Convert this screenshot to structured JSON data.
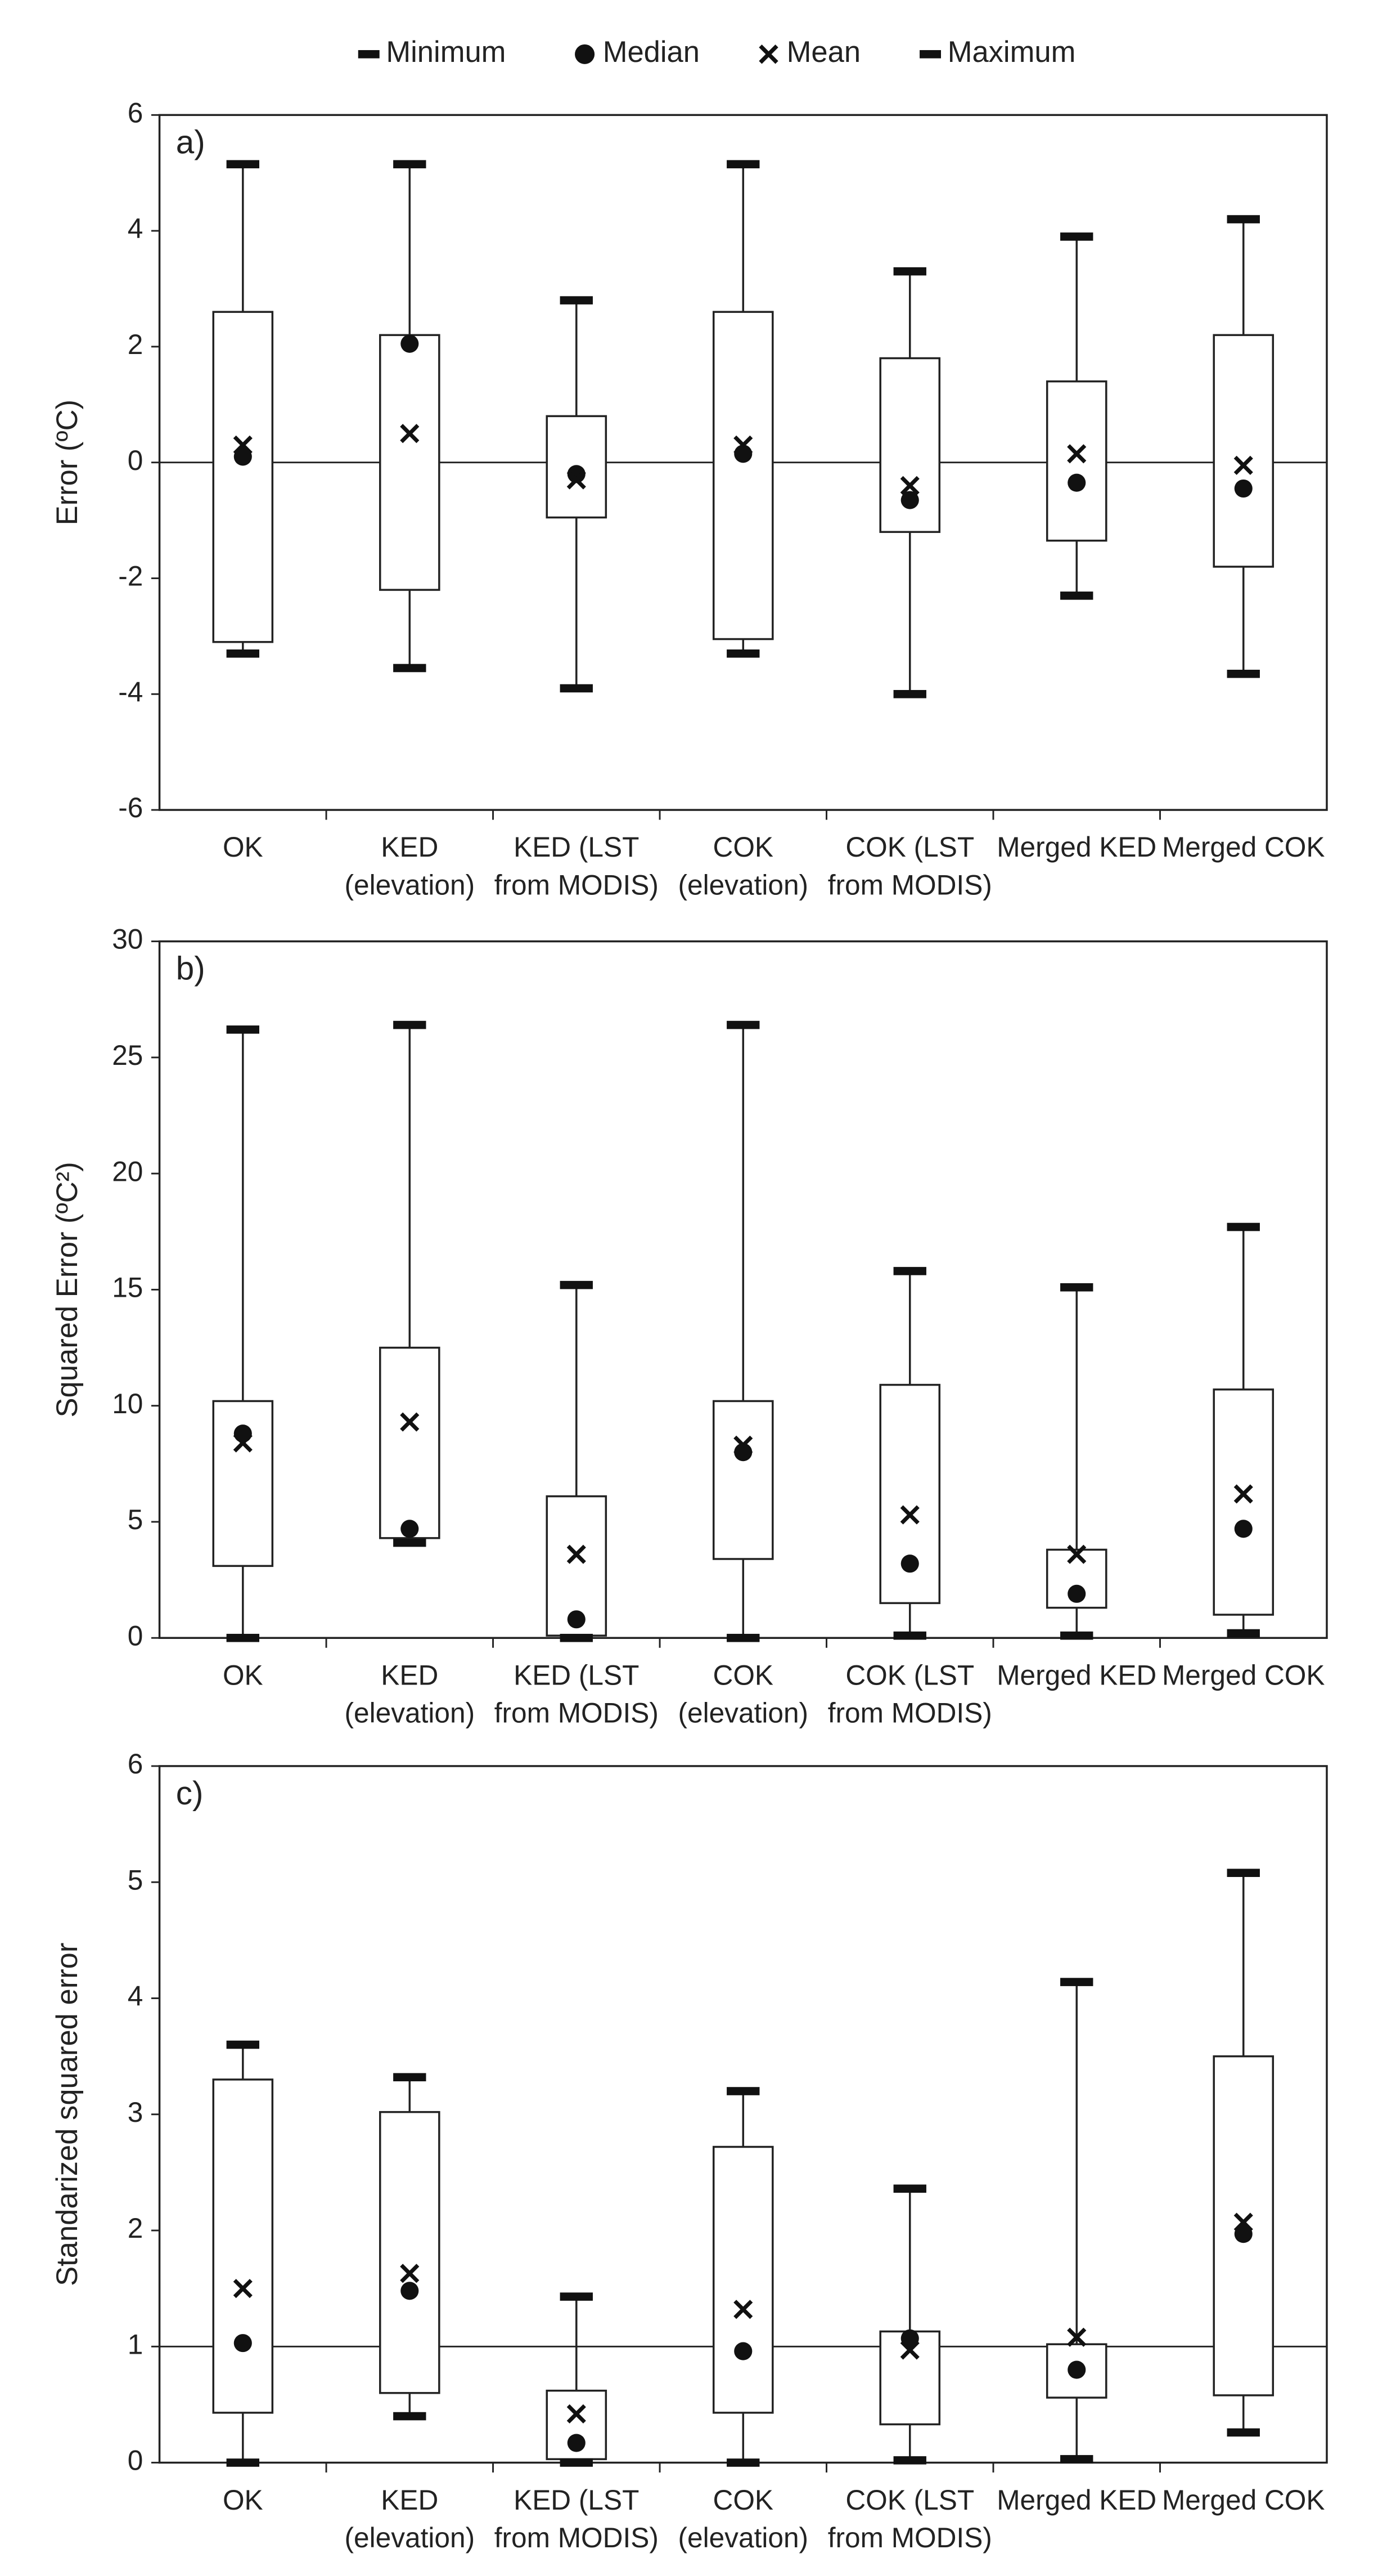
{
  "legend": [
    "Minimum",
    "Median",
    "Mean",
    "Maximum"
  ],
  "chart_data": [
    {
      "type": "box",
      "label": "a)",
      "y_label": "Error (ºC)",
      "categories": [
        [
          "OK"
        ],
        [
          "KED",
          "(elevation)"
        ],
        [
          "KED (LST",
          "from MODIS)"
        ],
        [
          "COK",
          "(elevation)"
        ],
        [
          "COK (LST",
          "from MODIS)"
        ],
        [
          "Merged KED"
        ],
        [
          "Merged COK"
        ]
      ],
      "min": [
        -3.3,
        -3.55,
        -3.9,
        -3.3,
        -4.0,
        -2.3,
        -3.65
      ],
      "q1": [
        -3.1,
        -2.2,
        -0.95,
        -3.05,
        -1.2,
        -1.35,
        -1.8
      ],
      "median": [
        0.1,
        2.05,
        -0.2,
        0.15,
        -0.65,
        -0.35,
        -0.45
      ],
      "mean": [
        0.3,
        0.5,
        -0.3,
        0.3,
        -0.4,
        0.15,
        -0.05
      ],
      "q3": [
        2.6,
        2.2,
        0.8,
        2.6,
        1.8,
        1.4,
        2.2
      ],
      "max": [
        5.15,
        5.15,
        2.8,
        5.15,
        3.3,
        3.9,
        4.2
      ],
      "ylim": [
        -6,
        6
      ],
      "yticks": [
        -6,
        -4,
        -2,
        0,
        2,
        4,
        6
      ],
      "reference_line": 0
    },
    {
      "type": "box",
      "label": "b)",
      "y_label": "Squared Error (ºC²)",
      "categories": [
        [
          "OK"
        ],
        [
          "KED",
          "(elevation)"
        ],
        [
          "KED (LST",
          "from MODIS)"
        ],
        [
          "COK",
          "(elevation)"
        ],
        [
          "COK (LST",
          "from MODIS)"
        ],
        [
          "Merged KED"
        ],
        [
          "Merged COK"
        ]
      ],
      "min": [
        0,
        4.1,
        0,
        0,
        0.1,
        0.1,
        0.2
      ],
      "q1": [
        3.1,
        4.3,
        0.1,
        3.4,
        1.5,
        1.3,
        1.0
      ],
      "median": [
        8.8,
        4.7,
        0.8,
        8.0,
        3.2,
        1.9,
        4.7
      ],
      "mean": [
        8.4,
        9.3,
        3.6,
        8.3,
        5.3,
        3.6,
        6.2
      ],
      "q3": [
        10.2,
        12.5,
        6.1,
        10.2,
        10.9,
        3.8,
        10.7
      ],
      "max": [
        26.2,
        26.4,
        15.2,
        26.4,
        15.8,
        15.1,
        17.7
      ],
      "ylim": [
        0,
        30
      ],
      "yticks": [
        0,
        5,
        10,
        15,
        20,
        25,
        30
      ]
    },
    {
      "type": "box",
      "label": "c)",
      "y_label": "Standarized squared error",
      "categories": [
        [
          "OK"
        ],
        [
          "KED",
          "(elevation)"
        ],
        [
          "KED (LST",
          "from MODIS)"
        ],
        [
          "COK",
          "(elevation)"
        ],
        [
          "COK (LST",
          "from MODIS)"
        ],
        [
          "Merged KED"
        ],
        [
          "Merged COK"
        ]
      ],
      "min": [
        0,
        0.4,
        0,
        0,
        0.02,
        0.03,
        0.26
      ],
      "q1": [
        0.43,
        0.6,
        0.03,
        0.43,
        0.33,
        0.56,
        0.58
      ],
      "median": [
        1.03,
        1.48,
        0.17,
        0.96,
        1.07,
        0.8,
        1.97
      ],
      "mean": [
        1.5,
        1.63,
        0.42,
        1.32,
        0.97,
        1.08,
        2.07
      ],
      "q3": [
        3.3,
        3.02,
        0.62,
        2.72,
        1.13,
        1.02,
        3.5
      ],
      "max": [
        3.6,
        3.32,
        1.43,
        3.2,
        2.36,
        4.14,
        5.08
      ],
      "ylim": [
        0,
        6
      ],
      "yticks": [
        0,
        1,
        2,
        3,
        4,
        5,
        6
      ],
      "reference_line": 1
    }
  ]
}
